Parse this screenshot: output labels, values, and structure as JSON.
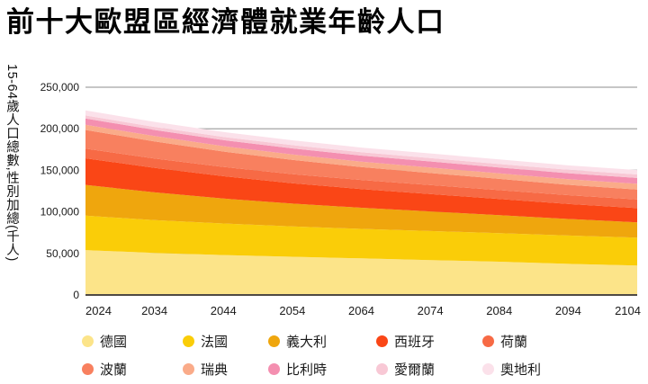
{
  "title": "前十大歐盟區經濟體就業年齡人口",
  "y_axis": {
    "title": "15-64歲人口總數,性別加總(千人)",
    "ticks": [
      "0",
      "50,000",
      "100,000",
      "150,000",
      "200,000",
      "250,000"
    ]
  },
  "x_axis": {
    "ticks": [
      "2024",
      "2034",
      "2044",
      "2054",
      "2064",
      "2074",
      "2084",
      "2094",
      "2104"
    ]
  },
  "chart_data": {
    "type": "area",
    "stacked": true,
    "title": "前十大歐盟區經濟體就業年齡人口",
    "ylabel": "15-64歲人口總數,性別加總(千人)",
    "xlabel": "",
    "ylim": [
      0,
      250000
    ],
    "grid": "horizontal",
    "legend_position": "bottom",
    "x": [
      2024,
      2034,
      2044,
      2054,
      2064,
      2074,
      2084,
      2094,
      2104
    ],
    "series": [
      {
        "id": "germany",
        "label": "德國",
        "color": "#FCE489",
        "values": [
          54000,
          50500,
          48000,
          46000,
          44000,
          42000,
          40000,
          37500,
          35500
        ]
      },
      {
        "id": "france",
        "label": "法國",
        "color": "#FACD08",
        "values": [
          41500,
          39500,
          38000,
          36500,
          35500,
          35000,
          34500,
          34000,
          33500
        ]
      },
      {
        "id": "italy",
        "label": "義大利",
        "color": "#EFA60D",
        "values": [
          37000,
          33500,
          30000,
          27500,
          25500,
          23500,
          21500,
          20000,
          18500
        ]
      },
      {
        "id": "spain",
        "label": "西班牙",
        "color": "#FA4616",
        "values": [
          32000,
          29500,
          27000,
          24500,
          22500,
          21000,
          19500,
          18000,
          17000
        ]
      },
      {
        "id": "netherlands",
        "label": "荷蘭",
        "color": "#F76A45",
        "values": [
          11600,
          11300,
          11100,
          11000,
          10900,
          10800,
          10700,
          10600,
          10500
        ]
      },
      {
        "id": "poland",
        "label": "波蘭",
        "color": "#F8805F",
        "values": [
          22500,
          20500,
          18500,
          17000,
          15500,
          14500,
          13500,
          12500,
          12000
        ]
      },
      {
        "id": "sweden",
        "label": "瑞典",
        "color": "#FAAB89",
        "values": [
          6300,
          6400,
          6500,
          6600,
          6600,
          6700,
          6700,
          6800,
          6800
        ]
      },
      {
        "id": "belgium",
        "label": "比利時",
        "color": "#F48FB0",
        "values": [
          7500,
          7400,
          7300,
          7300,
          7200,
          7200,
          7100,
          7100,
          7000
        ]
      },
      {
        "id": "ireland",
        "label": "愛爾蘭",
        "color": "#F8C8D5",
        "values": [
          3600,
          3700,
          3800,
          3900,
          4000,
          4000,
          4100,
          4100,
          4200
        ]
      },
      {
        "id": "austria",
        "label": "奧地利",
        "color": "#FBE1EA",
        "values": [
          6100,
          6000,
          5900,
          5800,
          5700,
          5600,
          5500,
          5400,
          5300
        ]
      }
    ]
  },
  "colors": {
    "gridline": "#b3b3b3",
    "baseline": "#4f4a44",
    "tick_text": "#1a1a1a",
    "title_text": "#000000"
  }
}
